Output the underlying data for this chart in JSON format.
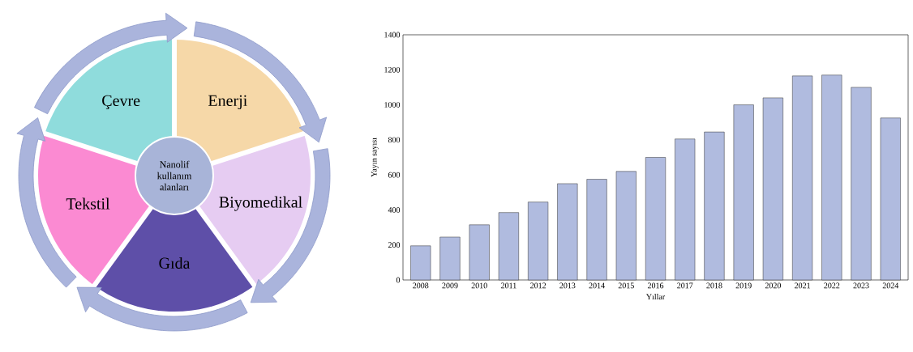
{
  "chart_data": [
    {
      "type": "other",
      "title": "Nanolif kullanım alanları",
      "categories": [
        "Enerji",
        "Biyomedikal",
        "Gıda",
        "Tekstil",
        "Çevre"
      ],
      "colors": [
        "#f6d8a8",
        "#e6ccf2",
        "#5e4fa8",
        "#fb8ad2",
        "#8fdcdc"
      ]
    },
    {
      "type": "bar",
      "xlabel": "Yıllar",
      "ylabel": "Yayın sayısı",
      "categories": [
        "2008",
        "2009",
        "2010",
        "2011",
        "2012",
        "2013",
        "2014",
        "2015",
        "2016",
        "2017",
        "2018",
        "2019",
        "2020",
        "2021",
        "2022",
        "2023",
        "2024"
      ],
      "values": [
        195,
        245,
        315,
        385,
        445,
        550,
        575,
        620,
        700,
        805,
        845,
        1000,
        1040,
        1165,
        1170,
        1100,
        925
      ],
      "color": "#b0bbdf",
      "ylim": [
        0,
        1400
      ],
      "yticks": [
        0,
        200,
        400,
        600,
        800,
        1000,
        1200,
        1400
      ]
    }
  ]
}
